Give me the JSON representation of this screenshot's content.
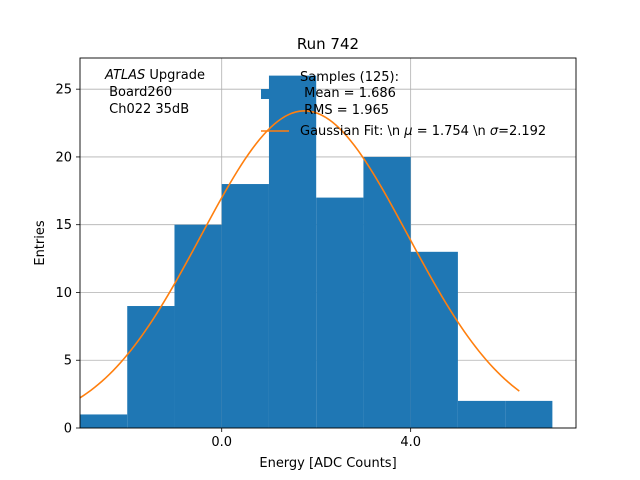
{
  "chart_data": {
    "type": "bar",
    "title": "Run 742",
    "xlabel": "Energy [ADC Counts]",
    "ylabel": "Entries",
    "xlim": [
      -3.0,
      7.5
    ],
    "ylim": [
      0,
      27.3
    ],
    "xticks": [
      {
        "value": 0.0,
        "label": "0.0"
      },
      {
        "value": 4.0,
        "label": "4.0"
      }
    ],
    "yticks": [
      0,
      5,
      10,
      15,
      20,
      25
    ],
    "grid": true,
    "bar_color": "#1f77b4",
    "fit_color": "#ff7f0e",
    "bins": [
      {
        "x0": -3.0,
        "x1": -2.0,
        "count": 1
      },
      {
        "x0": -2.0,
        "x1": -1.0,
        "count": 9
      },
      {
        "x0": -1.0,
        "x1": 0.0,
        "count": 15
      },
      {
        "x0": 0.0,
        "x1": 1.0,
        "count": 18
      },
      {
        "x0": 1.0,
        "x1": 2.0,
        "count": 26
      },
      {
        "x0": 2.0,
        "x1": 3.0,
        "count": 17
      },
      {
        "x0": 3.0,
        "x1": 4.0,
        "count": 20
      },
      {
        "x0": 4.0,
        "x1": 5.0,
        "count": 13
      },
      {
        "x0": 5.0,
        "x1": 6.0,
        "count": 2
      },
      {
        "x0": 6.0,
        "x1": 7.0,
        "count": 2
      }
    ],
    "fit": {
      "mu": 1.754,
      "sigma": 2.192,
      "amplitude": 23.4,
      "x_range": [
        -3.0,
        6.3
      ]
    },
    "annotation": {
      "experiment": "ATLAS",
      "suffix": " Upgrade",
      "line2": " Board260",
      "line3": " Ch022 35dB"
    },
    "legend": {
      "samples_line1": "Samples (125):",
      "samples_line2": " Mean = 1.686",
      "samples_line3": " RMS = 1.965",
      "fit_label_a": "Gaussian Fit: \\n ",
      "fit_label_mu": "μ",
      "fit_label_b": " = 1.754 \\n ",
      "fit_label_sigma": "σ",
      "fit_label_c": "=2.192"
    }
  }
}
